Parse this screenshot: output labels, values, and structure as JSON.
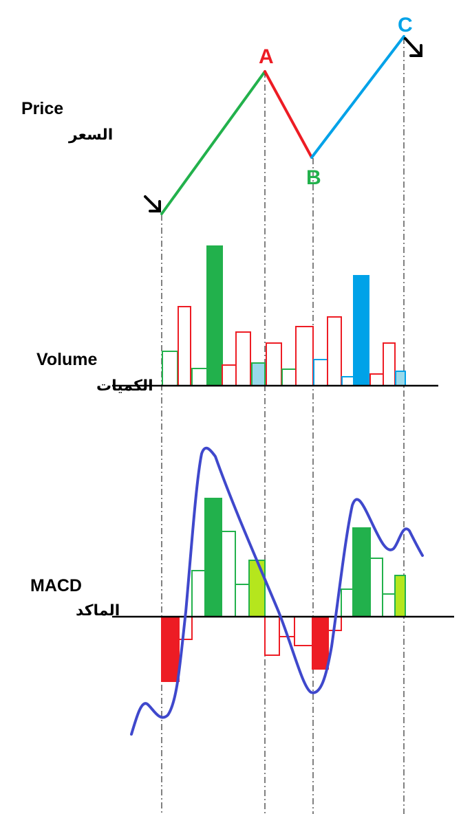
{
  "labels": {
    "price_en": "Price",
    "price_ar": "السعر",
    "volume_en": "Volume",
    "volume_ar": "الكميات",
    "macd_en": "MACD",
    "macd_ar": "الماكد"
  },
  "points": {
    "a": "A",
    "b": "B",
    "c": "C"
  },
  "colors": {
    "green": "#22b14c",
    "red": "#ed1c24",
    "blue": "#00a2e8",
    "light_blue": "#99d9ea",
    "lime": "#b5e61d",
    "macd_line": "#3f48cc",
    "black": "#000000"
  },
  "icons": {
    "start_arrow": "arrow-down-right-icon",
    "end_arrow": "arrow-down-right-icon"
  }
}
